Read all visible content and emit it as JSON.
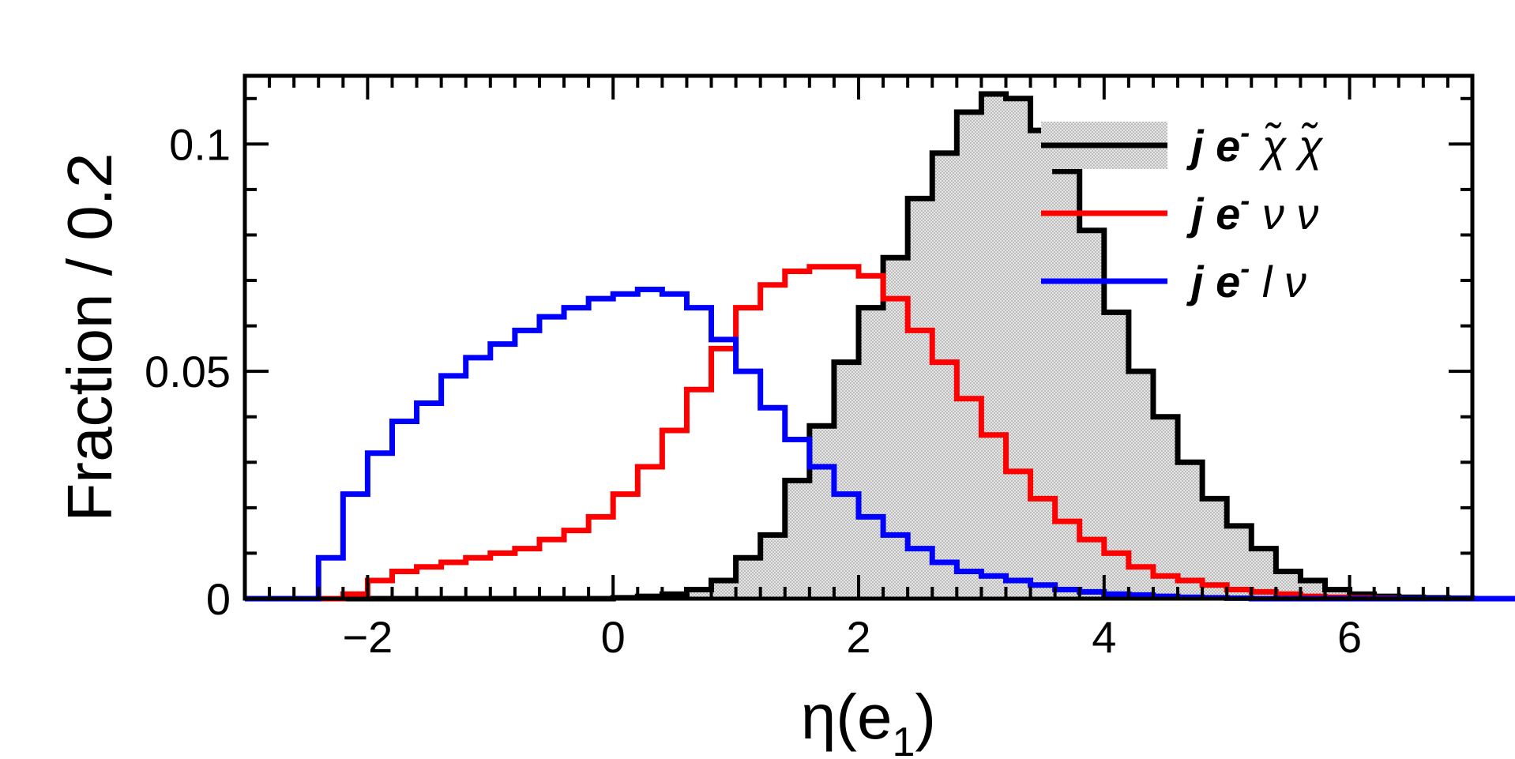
{
  "chart_data": {
    "type": "histogram-step",
    "xlabel": "η(e",
    "xlabel_sub": "1",
    "xlabel_close": ")",
    "ylabel": "Fraction / 0.2",
    "xlim": [
      -3,
      7
    ],
    "ylim": [
      0,
      0.115
    ],
    "bin_width": 0.2,
    "x_ticks": [
      -2,
      0,
      2,
      4,
      6
    ],
    "x_tick_labels": [
      "−2",
      "0",
      "2",
      "4",
      "6"
    ],
    "y_ticks": [
      0,
      0.05,
      0.1
    ],
    "y_tick_labels": [
      "0",
      "0.05",
      "0.1"
    ],
    "series": [
      {
        "name": "j e- χ̃ χ̃",
        "color": "#000000",
        "filled": true,
        "fill": "#d9d9d9",
        "x_start": -3,
        "values": [
          0,
          0,
          0,
          0,
          0,
          0,
          0,
          0,
          0,
          0,
          0,
          0,
          0,
          0,
          0,
          0.0002,
          0.0005,
          0.001,
          0.002,
          0.004,
          0.009,
          0.014,
          0.026,
          0.038,
          0.052,
          0.064,
          0.075,
          0.088,
          0.098,
          0.107,
          0.111,
          0.11,
          0.103,
          0.094,
          0.081,
          0.063,
          0.05,
          0.04,
          0.03,
          0.022,
          0.016,
          0.011,
          0.006,
          0.004,
          0.002,
          0.001,
          0.0005,
          0.0003,
          0.0002,
          0.0001,
          0,
          0,
          0,
          0,
          0,
          0,
          0,
          0,
          0,
          0,
          0,
          0,
          0,
          0,
          0,
          0,
          0,
          0,
          0,
          0
        ]
      },
      {
        "name": "j e- ν ν",
        "color": "#ff0000",
        "filled": false,
        "x_start": -3,
        "values": [
          0,
          0,
          0,
          0,
          0.001,
          0.004,
          0.006,
          0.007,
          0.008,
          0.009,
          0.01,
          0.011,
          0.013,
          0.015,
          0.018,
          0.023,
          0.029,
          0.037,
          0.046,
          0.055,
          0.064,
          0.069,
          0.072,
          0.073,
          0.073,
          0.071,
          0.066,
          0.059,
          0.052,
          0.044,
          0.036,
          0.028,
          0.022,
          0.017,
          0.013,
          0.01,
          0.007,
          0.005,
          0.004,
          0.003,
          0.002,
          0.0015,
          0.001,
          0.0005,
          0.0003,
          0.0002,
          0.0001,
          0,
          0,
          0,
          0,
          0,
          0,
          0,
          0,
          0,
          0,
          0,
          0,
          0,
          0,
          0,
          0,
          0,
          0,
          0,
          0,
          0,
          0,
          0
        ]
      },
      {
        "name": "j e- l ν",
        "color": "#0000ff",
        "filled": false,
        "x_start": -3,
        "values": [
          0,
          0,
          0,
          0.009,
          0.023,
          0.032,
          0.039,
          0.043,
          0.049,
          0.053,
          0.056,
          0.059,
          0.062,
          0.064,
          0.066,
          0.067,
          0.068,
          0.067,
          0.064,
          0.057,
          0.05,
          0.042,
          0.035,
          0.029,
          0.023,
          0.018,
          0.014,
          0.011,
          0.008,
          0.006,
          0.005,
          0.004,
          0.003,
          0.002,
          0.0015,
          0.001,
          0.0008,
          0.0005,
          0.0003,
          0.0002,
          0.0001,
          0,
          0,
          0,
          0,
          0,
          0,
          0,
          0,
          0,
          0,
          0,
          0,
          0,
          0,
          0,
          0,
          0,
          0,
          0,
          0,
          0,
          0,
          0,
          0,
          0,
          0,
          0,
          0,
          0
        ]
      }
    ],
    "legend": {
      "placement": "top-right",
      "entries": [
        {
          "label": "j e",
          "sup": "-",
          "rest": "  χ̃  χ̃",
          "color": "#000000",
          "filled": true
        },
        {
          "label": "j e",
          "sup": "-",
          "rest": "  ν  ν",
          "color": "#ff0000",
          "filled": false
        },
        {
          "label": "j e",
          "sup": "-",
          "rest": " l  ν",
          "color": "#0000ff",
          "filled": false
        }
      ]
    }
  }
}
